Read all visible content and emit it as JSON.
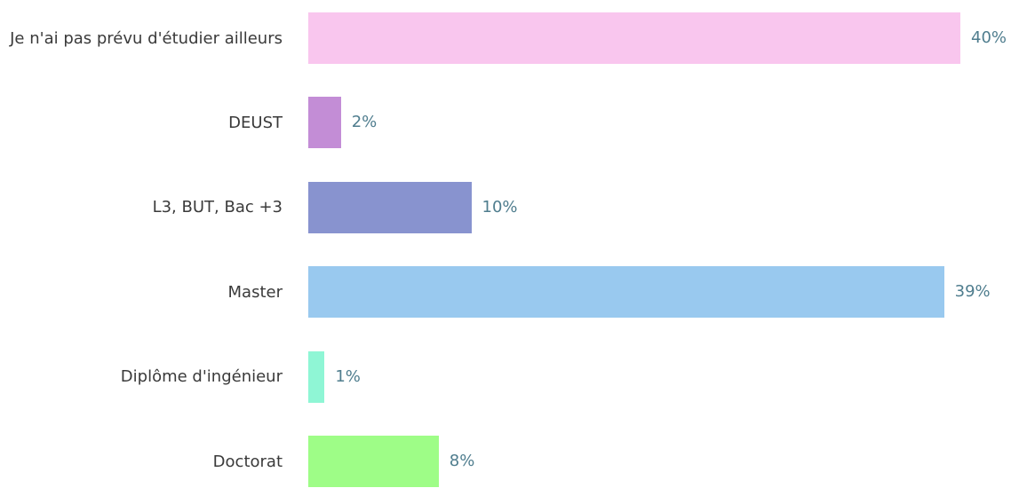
{
  "chart_data": {
    "type": "bar",
    "orientation": "horizontal",
    "categories": [
      "Je n'ai pas prévu d'étudier ailleurs",
      "DEUST",
      "L3, BUT, Bac +3",
      "Master",
      "Diplôme d'ingénieur",
      "Doctorat"
    ],
    "values": [
      40,
      2,
      10,
      39,
      1,
      8
    ],
    "value_labels": [
      "40%",
      "2%",
      "10%",
      "39%",
      "1%",
      "8%"
    ],
    "colors": [
      "#f9c6ee",
      "#c38dd6",
      "#8893cf",
      "#99c9ef",
      "#8ff6d5",
      "#9efd87"
    ]
  }
}
